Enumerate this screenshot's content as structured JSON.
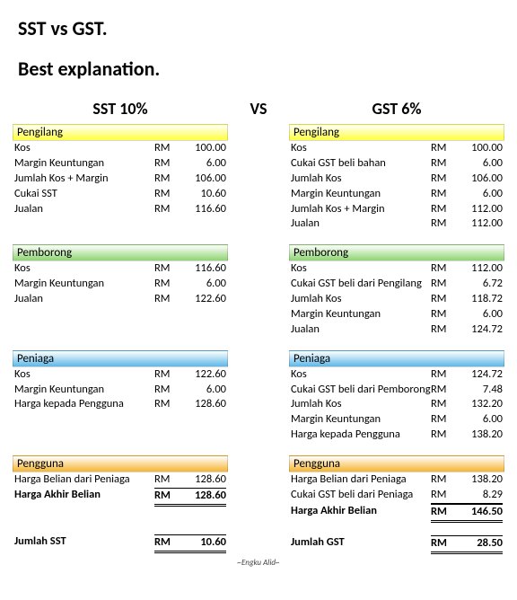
{
  "titles": {
    "t1": "SST vs GST.",
    "t2": "Best explanation."
  },
  "vs": "VS",
  "currency": "RM",
  "colors": {
    "pengilang": "#ffff3d",
    "pemborong": "#8ed472",
    "peniaga": "#5db7e8",
    "pengguna": "#f5b531"
  },
  "left": {
    "head": "SST 10%",
    "sections": [
      {
        "key": "pengilang",
        "title": "Pengilang",
        "rows": [
          {
            "label": "Kos",
            "val": "100.00"
          },
          {
            "label": "Margin Keuntungan",
            "val": "6.00"
          },
          {
            "label": "Jumlah Kos + Margin",
            "val": "106.00"
          },
          {
            "label": "Cukai SST",
            "val": "10.60"
          },
          {
            "label": "Jualan",
            "val": "116.60"
          }
        ]
      },
      {
        "key": "pemborong",
        "title": "Pemborong",
        "rows": [
          {
            "label": "Kos",
            "val": "116.60"
          },
          {
            "label": "Margin Keuntungan",
            "val": "6.00"
          },
          {
            "label": "Jualan",
            "val": "122.60"
          }
        ]
      },
      {
        "key": "peniaga",
        "title": "Peniaga",
        "rows": [
          {
            "label": "Kos",
            "val": "122.60"
          },
          {
            "label": "Margin Keuntungan",
            "val": "6.00"
          },
          {
            "label": "Harga kepada Pengguna",
            "val": "128.60"
          }
        ]
      },
      {
        "key": "pengguna",
        "title": "Pengguna",
        "rows": [
          {
            "label": "Harga Belian dari Peniaga",
            "val": "128.60"
          },
          {
            "label": "Harga Akhir Belian",
            "val": "128.60",
            "bold": true,
            "dbl": true
          }
        ]
      }
    ],
    "total": {
      "label": "Jumlah SST",
      "val": "10.60"
    }
  },
  "right": {
    "head": "GST 6%",
    "sections": [
      {
        "key": "pengilang",
        "title": "Pengilang",
        "rows": [
          {
            "label": "Kos",
            "val": "100.00"
          },
          {
            "label": "Cukai GST beli bahan",
            "val": "6.00"
          },
          {
            "label": "Jumlah Kos",
            "val": "106.00"
          },
          {
            "label": "Margin Keuntungan",
            "val": "6.00"
          },
          {
            "label": "Jumlah Kos + Margin",
            "val": "112.00"
          },
          {
            "label": "Jualan",
            "val": "112.00"
          }
        ]
      },
      {
        "key": "pemborong",
        "title": "Pemborong",
        "rows": [
          {
            "label": "Kos",
            "val": "112.00"
          },
          {
            "label": "Cukai GST beli dari Pengilang",
            "val": "6.72"
          },
          {
            "label": "Jumlah Kos",
            "val": "118.72"
          },
          {
            "label": "Margin Keuntungan",
            "val": "6.00"
          },
          {
            "label": "Jualan",
            "val": "124.72"
          }
        ]
      },
      {
        "key": "peniaga",
        "title": "Peniaga",
        "rows": [
          {
            "label": "Kos",
            "val": "124.72"
          },
          {
            "label": "Cukai GST beli dari Pemborong",
            "val": "7.48"
          },
          {
            "label": "Jumlah Kos",
            "val": "132.20"
          },
          {
            "label": "Margin Keuntungan",
            "val": "6.00"
          },
          {
            "label": "Harga kepada Pengguna",
            "val": "138.20"
          }
        ]
      },
      {
        "key": "pengguna",
        "title": "Pengguna",
        "rows": [
          {
            "label": "Harga Belian dari Peniaga",
            "val": "138.20"
          },
          {
            "label": "Cukai GST beli dari Peniaga",
            "val": "8.29",
            "underline": true
          },
          {
            "label": "Harga Akhir Belian",
            "val": "146.50",
            "bold": true,
            "dbl": true
          }
        ]
      }
    ],
    "total": {
      "label": "Jumlah GST",
      "val": "28.50"
    }
  },
  "footer": "~Engku Alid~"
}
